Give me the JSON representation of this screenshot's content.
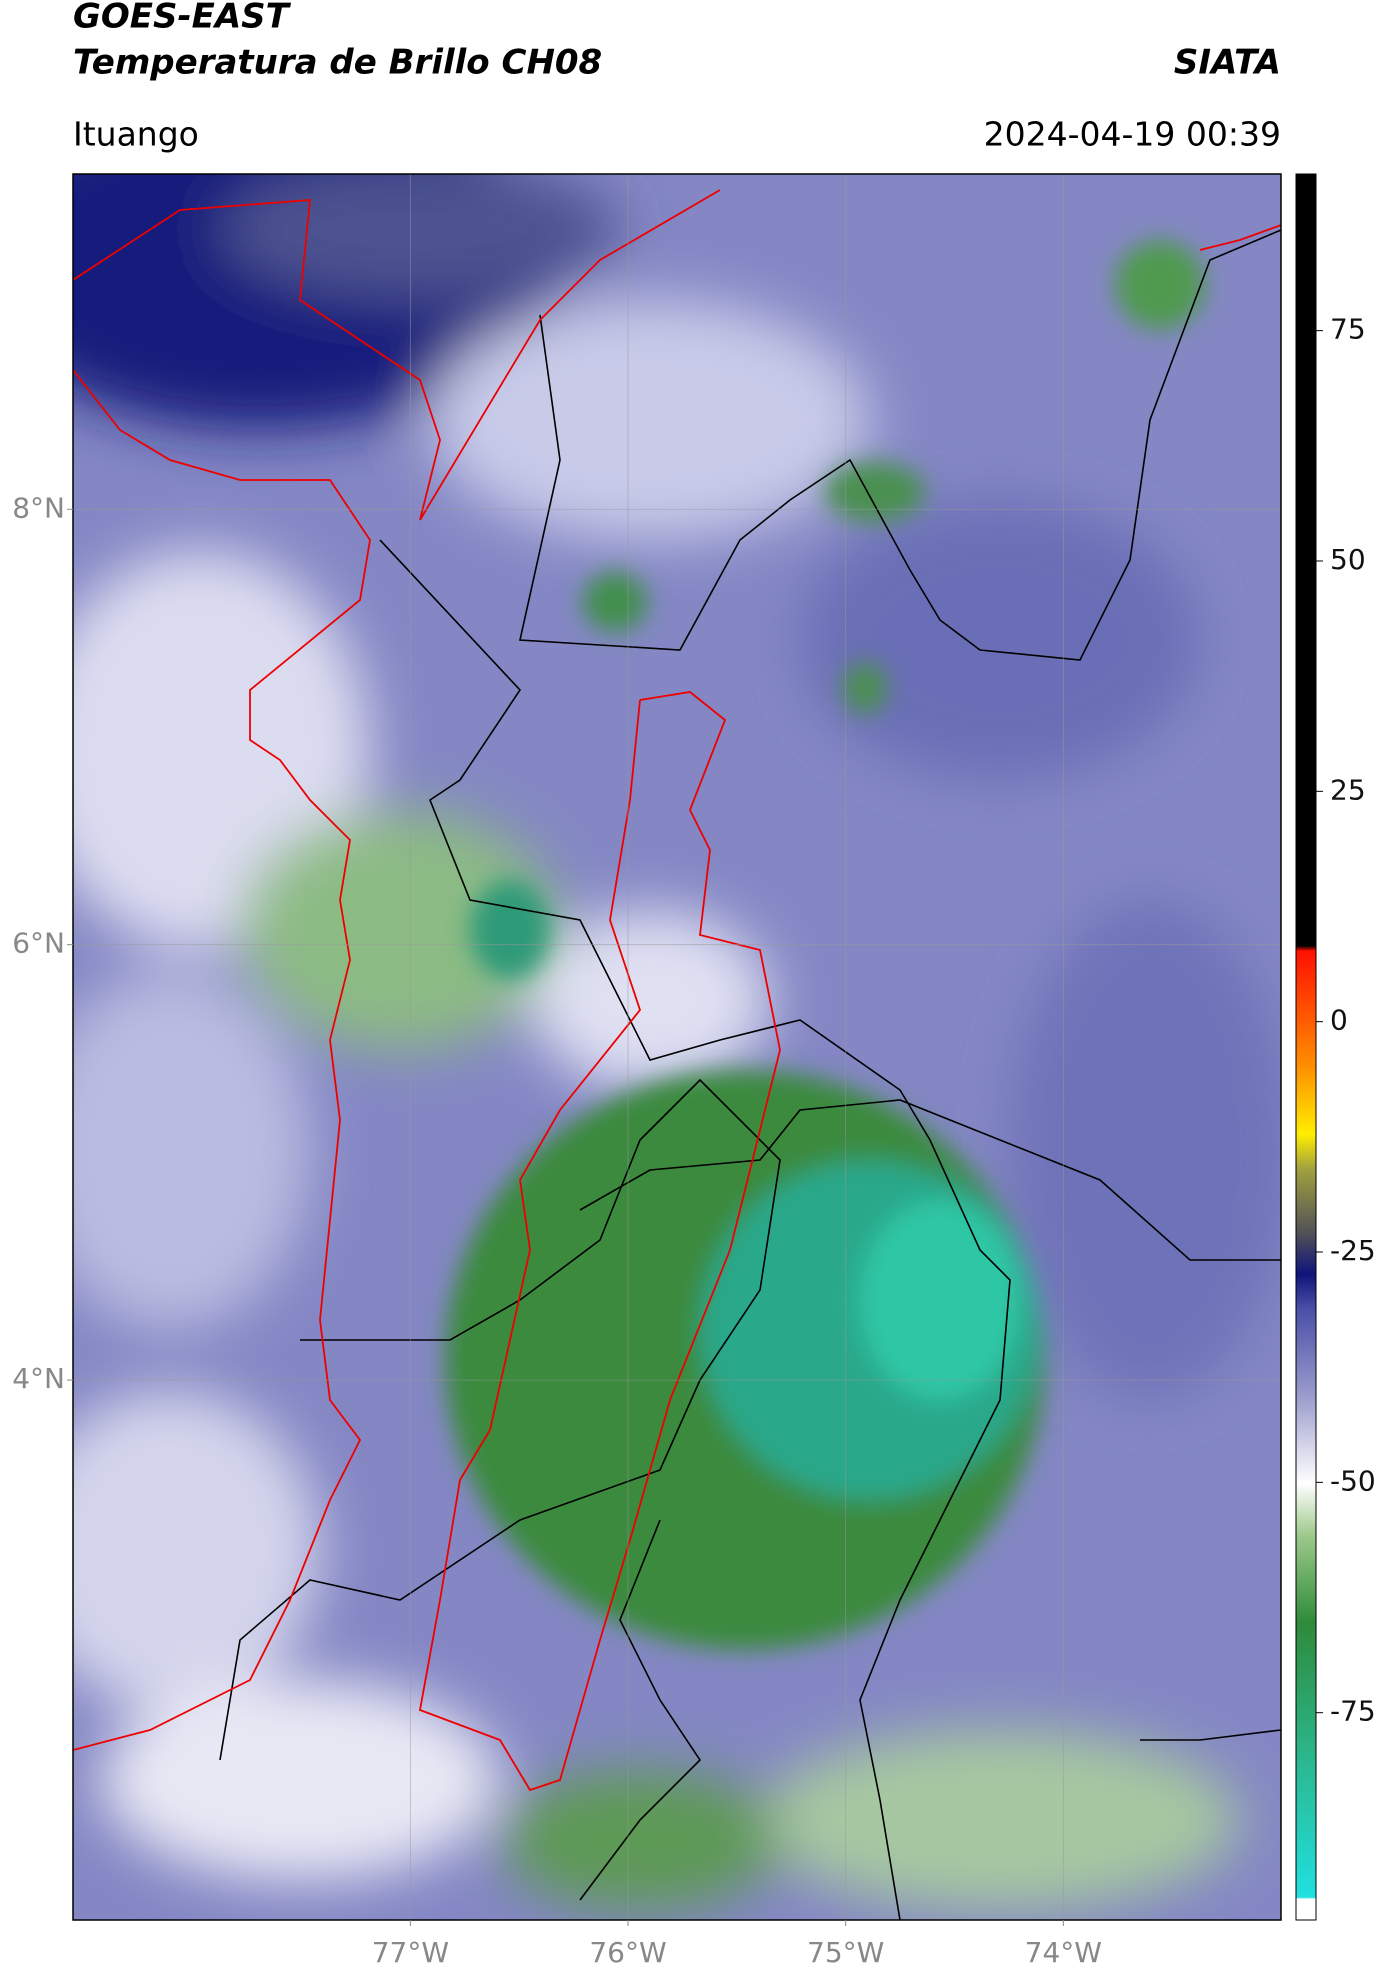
{
  "header": {
    "satellite": "GOES-EAST",
    "product": "Temperatura de Brillo CH08",
    "organization": "SIATA",
    "region": "Ituango",
    "timestamp": "2024-04-19 00:39"
  },
  "chart_data": {
    "type": "map",
    "xlim": [
      -78.55,
      -73.0
    ],
    "ylim": [
      1.52,
      9.54
    ],
    "xticks": [
      {
        "value": -77,
        "label": "77°W"
      },
      {
        "value": -76,
        "label": "76°W"
      },
      {
        "value": -75,
        "label": "75°W"
      },
      {
        "value": -74,
        "label": "74°W"
      }
    ],
    "yticks": [
      {
        "value": 8,
        "label": "8°N"
      },
      {
        "value": 6,
        "label": "6°N"
      },
      {
        "value": 4,
        "label": "4°N"
      }
    ],
    "grid": true,
    "colorbar": {
      "lim": [
        -97.5,
        92
      ],
      "ticks": [
        75,
        50,
        25,
        0,
        -25,
        -50,
        -75
      ]
    }
  }
}
